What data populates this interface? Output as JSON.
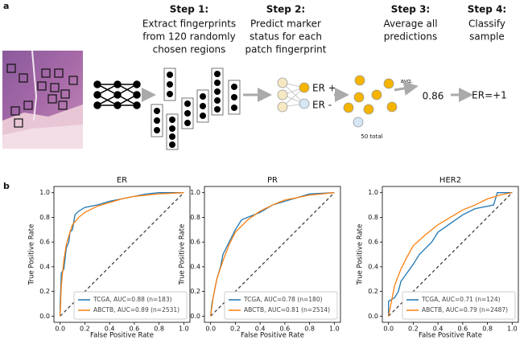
{
  "panel_a": {
    "label": "a",
    "steps": [
      {
        "title": "Step 1:",
        "lines": [
          "Extract fingerprints",
          "from 120 randomly",
          "chosen regions"
        ]
      },
      {
        "title": "Step 2:",
        "lines": [
          "Predict marker",
          "status for each",
          "patch fingerprint"
        ]
      },
      {
        "title": "Step 3:",
        "lines": [
          "Average all",
          "predictions"
        ]
      },
      {
        "title": "Step 4:",
        "lines": [
          "Classify",
          "sample"
        ]
      }
    ],
    "er_pos": "ER +",
    "er_neg": "ER -",
    "total": "50 total",
    "avg": "avg.",
    "score": "0.86",
    "result": "ER=+1"
  },
  "panel_b": {
    "label": "b"
  },
  "chart_data": [
    {
      "type": "line",
      "title": "ER",
      "xlabel": "False Positive Rate",
      "ylabel": "True Positive Rate",
      "xlim": [
        -0.05,
        1.05
      ],
      "ylim": [
        -0.05,
        1.05
      ],
      "xticks": [
        {
          "value": 0,
          "label": "0.0"
        },
        {
          "value": 0.2,
          "label": "0.2"
        },
        {
          "value": 0.4,
          "label": "0.4"
        },
        {
          "value": 0.6,
          "label": "0.6"
        },
        {
          "value": 0.8,
          "label": "0.8"
        },
        {
          "value": 1,
          "label": "1.0"
        }
      ],
      "yticks": [
        {
          "value": 0,
          "label": "0.0"
        },
        {
          "value": 0.2,
          "label": "0.2"
        },
        {
          "value": 0.4,
          "label": "0.4"
        },
        {
          "value": 0.6,
          "label": "0.6"
        },
        {
          "value": 0.8,
          "label": "0.8"
        },
        {
          "value": 1,
          "label": "1.0"
        }
      ],
      "legend": "lower right",
      "series": [
        {
          "name": "TCGA, AUC=0.88 (n=183)",
          "color": "#1f77b4",
          "x": [
            0,
            0,
            0.01,
            0.03,
            0.05,
            0.07,
            0.08,
            0.1,
            0.12,
            0.15,
            0.2,
            0.3,
            0.4,
            0.5,
            0.6,
            0.7,
            0.8,
            1
          ],
          "values": [
            0,
            0.08,
            0.35,
            0.38,
            0.55,
            0.6,
            0.68,
            0.7,
            0.82,
            0.85,
            0.88,
            0.9,
            0.93,
            0.95,
            0.97,
            0.99,
            1,
            1
          ]
        },
        {
          "name": "ABCTB, AUC=0.89 (n=2531)",
          "color": "#ff7f0e",
          "x": [
            0,
            0.01,
            0.03,
            0.05,
            0.08,
            0.1,
            0.15,
            0.2,
            0.3,
            0.4,
            0.5,
            0.6,
            0.8,
            1
          ],
          "values": [
            0,
            0.25,
            0.45,
            0.58,
            0.68,
            0.74,
            0.8,
            0.84,
            0.89,
            0.92,
            0.95,
            0.97,
            0.99,
            1
          ]
        }
      ]
    },
    {
      "type": "line",
      "title": "PR",
      "xlabel": "False Positive Rate",
      "ylabel": "True Positive Rate",
      "xlim": [
        -0.05,
        1.05
      ],
      "ylim": [
        -0.05,
        1.05
      ],
      "xticks": [
        {
          "value": 0,
          "label": "0.0"
        },
        {
          "value": 0.2,
          "label": "0.2"
        },
        {
          "value": 0.4,
          "label": "0.4"
        },
        {
          "value": 0.6,
          "label": "0.6"
        },
        {
          "value": 0.8,
          "label": "0.8"
        },
        {
          "value": 1,
          "label": "1.0"
        }
      ],
      "yticks": [
        {
          "value": 0,
          "label": "0.0"
        },
        {
          "value": 0.2,
          "label": "0.2"
        },
        {
          "value": 0.4,
          "label": "0.4"
        },
        {
          "value": 0.6,
          "label": "0.6"
        },
        {
          "value": 0.8,
          "label": "0.8"
        },
        {
          "value": 1,
          "label": "1.0"
        }
      ],
      "legend": "lower right",
      "series": [
        {
          "name": "TCGA, AUC=0.78 (n=180)",
          "color": "#1f77b4",
          "x": [
            0,
            0.01,
            0.03,
            0.05,
            0.08,
            0.1,
            0.15,
            0.2,
            0.25,
            0.3,
            0.4,
            0.5,
            0.6,
            0.7,
            0.8,
            1
          ],
          "values": [
            0,
            0.1,
            0.2,
            0.3,
            0.4,
            0.5,
            0.6,
            0.7,
            0.78,
            0.8,
            0.84,
            0.9,
            0.93,
            0.96,
            0.99,
            1
          ]
        },
        {
          "name": "ABCTB, AUC=0.81 (n=2514)",
          "color": "#ff7f0e",
          "x": [
            0,
            0.02,
            0.05,
            0.1,
            0.15,
            0.2,
            0.3,
            0.4,
            0.5,
            0.6,
            0.7,
            0.8,
            1
          ],
          "values": [
            0,
            0.15,
            0.3,
            0.45,
            0.58,
            0.68,
            0.78,
            0.85,
            0.9,
            0.94,
            0.96,
            0.98,
            1
          ]
        }
      ]
    },
    {
      "type": "line",
      "title": "HER2",
      "xlabel": "False Positive Rate",
      "ylabel": "True Positive Rate",
      "xlim": [
        -0.05,
        1.05
      ],
      "ylim": [
        -0.05,
        1.05
      ],
      "xticks": [
        {
          "value": 0,
          "label": "0.0"
        },
        {
          "value": 0.2,
          "label": "0.2"
        },
        {
          "value": 0.4,
          "label": "0.4"
        },
        {
          "value": 0.6,
          "label": "0.6"
        },
        {
          "value": 0.8,
          "label": "0.8"
        },
        {
          "value": 1,
          "label": "1.0"
        }
      ],
      "yticks": [
        {
          "value": 0,
          "label": "0.0"
        },
        {
          "value": 0.2,
          "label": "0.2"
        },
        {
          "value": 0.4,
          "label": "0.4"
        },
        {
          "value": 0.6,
          "label": "0.6"
        },
        {
          "value": 0.8,
          "label": "0.8"
        },
        {
          "value": 1,
          "label": "1.0"
        }
      ],
      "legend": "lower right",
      "series": [
        {
          "name": "TCGA, AUC=0.71 (n=124)",
          "color": "#1f77b4",
          "x": [
            0,
            0,
            0.05,
            0.08,
            0.1,
            0.15,
            0.2,
            0.25,
            0.3,
            0.35,
            0.4,
            0.5,
            0.6,
            0.7,
            0.85,
            0.88,
            1
          ],
          "values": [
            0,
            0.12,
            0.15,
            0.2,
            0.28,
            0.35,
            0.42,
            0.5,
            0.55,
            0.6,
            0.68,
            0.75,
            0.82,
            0.87,
            0.9,
            1,
            1
          ]
        },
        {
          "name": "ABCTB, AUC=0.79 (n=2487)",
          "color": "#ff7f0e",
          "x": [
            0,
            0.02,
            0.05,
            0.1,
            0.15,
            0.2,
            0.3,
            0.4,
            0.5,
            0.6,
            0.7,
            0.8,
            0.9,
            1
          ],
          "values": [
            0,
            0.1,
            0.25,
            0.38,
            0.48,
            0.57,
            0.66,
            0.74,
            0.8,
            0.86,
            0.9,
            0.95,
            0.98,
            1
          ]
        }
      ]
    }
  ]
}
